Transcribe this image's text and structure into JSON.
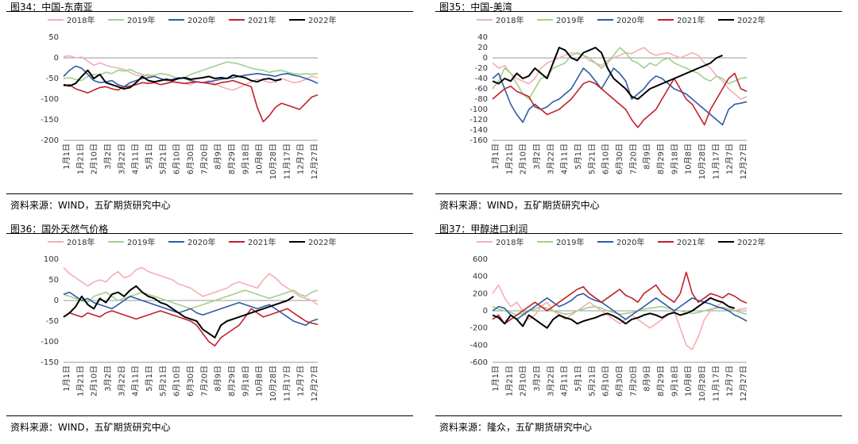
{
  "colors": {
    "2018年": "#f4aeb3",
    "2019年": "#9fd18a",
    "2020年": "#2e5aa7",
    "2021年": "#c0212a",
    "2022年": "#000000"
  },
  "panels": [
    {
      "title": "图34：中国-东南亚",
      "source": "资料来源：WIND，五矿期货研究中心"
    },
    {
      "title": "图35：中国-美湾",
      "source": "资料来源：WIND，五矿期货研究中心"
    },
    {
      "title": "图36：国外天然气价格",
      "source": "资料来源：WIND，五矿期货研究中心"
    },
    {
      "title": "图37：甲醇进口利润",
      "source": "资料来源：隆众，五矿期货研究中心"
    }
  ],
  "chart_data": [
    {
      "type": "line",
      "title": "图34：中国-东南亚",
      "legend_position": "top",
      "ylim": [
        -200,
        50
      ],
      "yticks": [
        50,
        0,
        -50,
        -100,
        -150,
        -200
      ],
      "x_tick_labels": [
        "1月1日",
        "1月21日",
        "2月10日",
        "3月2日",
        "3月22日",
        "4月11日",
        "5月1日",
        "5月21日",
        "6月10日",
        "6月30日",
        "7月20日",
        "8月9日",
        "8月29日",
        "9月18日",
        "10月8日",
        "10月28日",
        "11月17日",
        "12月7日",
        "12月27日"
      ],
      "series": [
        {
          "name": "2018年",
          "values": [
            3,
            5,
            0,
            2,
            -8,
            -18,
            -12,
            -18,
            -22,
            -25,
            -28,
            -35,
            -42,
            -45,
            -40,
            -45,
            -50,
            -55,
            -58,
            -60,
            -62,
            -65,
            -58,
            -60,
            -55,
            -62,
            -70,
            -75,
            -78,
            -72,
            -65,
            -58,
            -52,
            -55,
            -60,
            -58,
            -50,
            -55,
            -60,
            -58,
            -52,
            -45,
            -48
          ]
        },
        {
          "name": "2019年",
          "values": [
            -50,
            -48,
            -52,
            -55,
            -45,
            -40,
            -42,
            -35,
            -38,
            -30,
            -32,
            -28,
            -35,
            -40,
            -45,
            -42,
            -38,
            -40,
            -45,
            -50,
            -48,
            -40,
            -35,
            -30,
            -25,
            -20,
            -15,
            -10,
            -12,
            -15,
            -20,
            -25,
            -28,
            -30,
            -35,
            -32,
            -30,
            -35,
            -38,
            -40,
            -38,
            -40,
            -38
          ]
        },
        {
          "name": "2020年",
          "values": [
            -45,
            -30,
            -20,
            -25,
            -40,
            -55,
            -60,
            -58,
            -55,
            -65,
            -70,
            -60,
            -55,
            -50,
            -48,
            -45,
            -50,
            -55,
            -52,
            -48,
            -50,
            -55,
            -58,
            -60,
            -58,
            -55,
            -52,
            -50,
            -48,
            -45,
            -42,
            -40,
            -38,
            -40,
            -42,
            -45,
            -40,
            -38,
            -42,
            -45,
            -50,
            -55,
            -62
          ]
        },
        {
          "name": "2021年",
          "values": [
            -68,
            -65,
            -75,
            -80,
            -85,
            -78,
            -72,
            -70,
            -75,
            -78,
            -70,
            -68,
            -65,
            -60,
            -62,
            -60,
            -65,
            -62,
            -58,
            -60,
            -62,
            -60,
            -58,
            -60,
            -62,
            -65,
            -60,
            -58,
            -55,
            -60,
            -65,
            -70,
            -120,
            -155,
            -140,
            -120,
            -110,
            -115,
            -120,
            -125,
            -110,
            -95,
            -90
          ]
        },
        {
          "name": "2022年",
          "values": [
            -65,
            -68,
            -62,
            -45,
            -30,
            -50,
            -40,
            -60,
            -65,
            -70,
            -75,
            -72,
            -60,
            -45,
            -55,
            -58,
            -55,
            -52,
            -55,
            -50,
            -48,
            -52,
            -50,
            -48,
            -45,
            -50,
            -48,
            -50,
            -42,
            -45,
            -48,
            -55,
            -58,
            -52,
            -50,
            -55,
            -52
          ]
        }
      ]
    },
    {
      "type": "line",
      "title": "图35：中国-美湾",
      "legend_position": "top",
      "ylim": [
        -160,
        40
      ],
      "yticks": [
        40,
        20,
        0,
        -20,
        -40,
        -60,
        -80,
        -100,
        -120,
        -140,
        -160
      ],
      "x_tick_labels": [
        "1月1日",
        "1月21日",
        "2月10日",
        "3月2日",
        "3月22日",
        "4月11日",
        "5月1日",
        "5月21日",
        "6月10日",
        "6月30日",
        "7月20日",
        "8月9日",
        "8月29日",
        "9月18日",
        "10月8日",
        "10月28日",
        "11月17日",
        "12月7日",
        "12月27日"
      ],
      "series": [
        {
          "name": "2018年",
          "values": [
            -10,
            -20,
            -15,
            -30,
            -40,
            -45,
            -50,
            -40,
            -20,
            -10,
            -5,
            0,
            5,
            10,
            8,
            5,
            -5,
            -10,
            -15,
            -5,
            0,
            5,
            10,
            8,
            15,
            20,
            10,
            5,
            8,
            10,
            5,
            0,
            5,
            10,
            5,
            -10,
            -20,
            -35,
            -45,
            -60,
            -70,
            -80,
            -75
          ]
        },
        {
          "name": "2019年",
          "values": [
            -60,
            -45,
            -20,
            -30,
            -50,
            -70,
            -80,
            -60,
            -40,
            -35,
            -20,
            -15,
            -10,
            5,
            10,
            5,
            0,
            -10,
            -20,
            -10,
            5,
            20,
            10,
            -5,
            -10,
            -20,
            -10,
            -15,
            -5,
            0,
            -10,
            -15,
            -20,
            -25,
            -30,
            -40,
            -45,
            -35,
            -40,
            -50,
            -45,
            -40,
            -38
          ]
        },
        {
          "name": "2020年",
          "values": [
            -40,
            -30,
            -60,
            -90,
            -110,
            -125,
            -100,
            -90,
            -100,
            -95,
            -85,
            -80,
            -70,
            -60,
            -40,
            -20,
            -30,
            -45,
            -60,
            -40,
            -20,
            -30,
            -45,
            -80,
            -70,
            -60,
            -45,
            -35,
            -40,
            -50,
            -60,
            -65,
            -70,
            -80,
            -90,
            -100,
            -110,
            -120,
            -130,
            -100,
            -90,
            -88,
            -85
          ]
        },
        {
          "name": "2021年",
          "values": [
            -80,
            -70,
            -60,
            -55,
            -65,
            -70,
            -75,
            -95,
            -100,
            -110,
            -105,
            -100,
            -90,
            -80,
            -65,
            -50,
            -45,
            -50,
            -60,
            -70,
            -80,
            -90,
            -100,
            -120,
            -135,
            -120,
            -110,
            -100,
            -80,
            -60,
            -40,
            -60,
            -80,
            -90,
            -110,
            -130,
            -100,
            -80,
            -60,
            -40,
            -30,
            -60,
            -65
          ]
        },
        {
          "name": "2022年",
          "values": [
            -45,
            -50,
            -40,
            -45,
            -30,
            -40,
            -35,
            -20,
            -30,
            -40,
            -10,
            20,
            15,
            0,
            -5,
            10,
            15,
            20,
            10,
            -20,
            -40,
            -50,
            -60,
            -75,
            -80,
            -70,
            -60,
            -55,
            -50,
            -45,
            -40,
            -35,
            -30,
            -25,
            -20,
            -15,
            -10,
            0,
            5
          ]
        }
      ]
    },
    {
      "type": "line",
      "title": "图36：国外天然气价格",
      "legend_position": "top",
      "ylim": [
        -150,
        100
      ],
      "yticks": [
        100,
        50,
        0,
        -50,
        -100,
        -150
      ],
      "x_tick_labels": [
        "1月1日",
        "1月21日",
        "2月10日",
        "3月2日",
        "3月22日",
        "4月11日",
        "5月1日",
        "5月21日",
        "6月10日",
        "6月30日",
        "7月20日",
        "8月9日",
        "8月29日",
        "9月18日",
        "10月8日",
        "10月28日",
        "11月17日",
        "12月7日",
        "12月27日"
      ],
      "series": [
        {
          "name": "2018年",
          "values": [
            80,
            65,
            55,
            45,
            35,
            45,
            50,
            45,
            60,
            70,
            55,
            60,
            75,
            80,
            70,
            65,
            60,
            55,
            50,
            40,
            35,
            30,
            20,
            10,
            15,
            20,
            25,
            30,
            40,
            45,
            40,
            35,
            30,
            50,
            65,
            55,
            40,
            30,
            20,
            10,
            5,
            0,
            -10
          ]
        },
        {
          "name": "2019年",
          "values": [
            15,
            10,
            5,
            0,
            -5,
            10,
            15,
            20,
            10,
            0,
            5,
            10,
            15,
            20,
            15,
            10,
            5,
            0,
            -5,
            -10,
            -15,
            -20,
            -15,
            -10,
            -5,
            0,
            5,
            10,
            15,
            20,
            25,
            20,
            15,
            10,
            5,
            10,
            15,
            20,
            25,
            15,
            10,
            20,
            25
          ]
        },
        {
          "name": "2020年",
          "values": [
            15,
            20,
            10,
            0,
            5,
            -5,
            -10,
            -15,
            -20,
            -10,
            0,
            10,
            5,
            0,
            -5,
            -10,
            -15,
            -20,
            -25,
            -30,
            -25,
            -20,
            -30,
            -35,
            -30,
            -25,
            -20,
            -15,
            -10,
            -5,
            -10,
            -15,
            -20,
            -15,
            -10,
            -20,
            -30,
            -40,
            -50,
            -55,
            -60,
            -50,
            -45
          ]
        },
        {
          "name": "2021年",
          "values": [
            -40,
            -30,
            -35,
            -40,
            -30,
            -35,
            -40,
            -30,
            -25,
            -30,
            -35,
            -40,
            -45,
            -40,
            -35,
            -30,
            -25,
            -30,
            -35,
            -40,
            -45,
            -50,
            -60,
            -80,
            -100,
            -110,
            -90,
            -80,
            -70,
            -60,
            -40,
            -20,
            -30,
            -40,
            -35,
            -30,
            -25,
            -20,
            -30,
            -40,
            -50,
            -55,
            -58
          ]
        },
        {
          "name": "2022年",
          "values": [
            -40,
            -30,
            -15,
            10,
            -10,
            -20,
            5,
            -5,
            15,
            20,
            10,
            25,
            35,
            20,
            10,
            5,
            -5,
            -10,
            -20,
            -30,
            -40,
            -45,
            -50,
            -70,
            -80,
            -90,
            -60,
            -50,
            -45,
            -40,
            -35,
            -30,
            -25,
            -20,
            -15,
            -10,
            -5,
            0,
            10
          ]
        }
      ]
    },
    {
      "type": "line",
      "title": "图37：甲醇进口利润",
      "legend_position": "top",
      "ylim": [
        -600,
        600
      ],
      "yticks": [
        600,
        400,
        200,
        0,
        -200,
        -400,
        -600
      ],
      "x_tick_labels": [
        "1月1日",
        "1月21日",
        "2月10日",
        "3月2日",
        "3月22日",
        "4月11日",
        "5月1日",
        "5月21日",
        "6月10日",
        "6月30日",
        "7月20日",
        "8月9日",
        "8月29日",
        "9月18日",
        "10月8日",
        "10月28日",
        "11月17日",
        "12月7日",
        "12月27日"
      ],
      "series": [
        {
          "name": "2018年",
          "values": [
            200,
            300,
            150,
            50,
            100,
            0,
            -100,
            -50,
            50,
            100,
            0,
            -50,
            -100,
            -50,
            0,
            50,
            100,
            50,
            0,
            -50,
            -100,
            -150,
            -100,
            -50,
            -100,
            -150,
            -200,
            -150,
            -100,
            -50,
            0,
            -200,
            -400,
            -450,
            -300,
            -100,
            0,
            50,
            100,
            50,
            0,
            20,
            30
          ]
        },
        {
          "name": "2019年",
          "values": [
            50,
            20,
            0,
            -20,
            -50,
            -30,
            0,
            20,
            50,
            30,
            0,
            -20,
            -40,
            -30,
            0,
            20,
            40,
            50,
            30,
            0,
            -20,
            -40,
            -30,
            -20,
            0,
            20,
            30,
            40,
            50,
            30,
            10,
            0,
            -20,
            -30,
            -20,
            0,
            20,
            30,
            40,
            20,
            0,
            -20,
            -40
          ]
        },
        {
          "name": "2020年",
          "values": [
            0,
            50,
            30,
            -50,
            -100,
            -50,
            0,
            50,
            100,
            150,
            100,
            50,
            80,
            120,
            180,
            200,
            150,
            120,
            100,
            50,
            0,
            -50,
            -100,
            -50,
            0,
            50,
            100,
            150,
            100,
            50,
            0,
            50,
            100,
            150,
            120,
            100,
            80,
            50,
            30,
            0,
            -50,
            -80,
            -120
          ]
        },
        {
          "name": "2021年",
          "values": [
            -100,
            -50,
            -150,
            -100,
            -50,
            0,
            50,
            100,
            50,
            0,
            50,
            100,
            150,
            200,
            250,
            280,
            200,
            150,
            100,
            150,
            200,
            250,
            180,
            150,
            100,
            200,
            250,
            300,
            200,
            150,
            100,
            200,
            450,
            200,
            100,
            150,
            200,
            180,
            150,
            200,
            170,
            120,
            90
          ]
        },
        {
          "name": "2022年",
          "values": [
            -50,
            -80,
            -150,
            -50,
            -100,
            -180,
            -50,
            -100,
            -150,
            -200,
            -100,
            -50,
            -80,
            -100,
            -150,
            -120,
            -100,
            -80,
            -50,
            -30,
            -60,
            -100,
            -150,
            -100,
            -80,
            -50,
            -30,
            -50,
            -80,
            -40,
            -20,
            -50,
            -30,
            0,
            50,
            100,
            150,
            120,
            100,
            50,
            30
          ]
        }
      ]
    }
  ]
}
